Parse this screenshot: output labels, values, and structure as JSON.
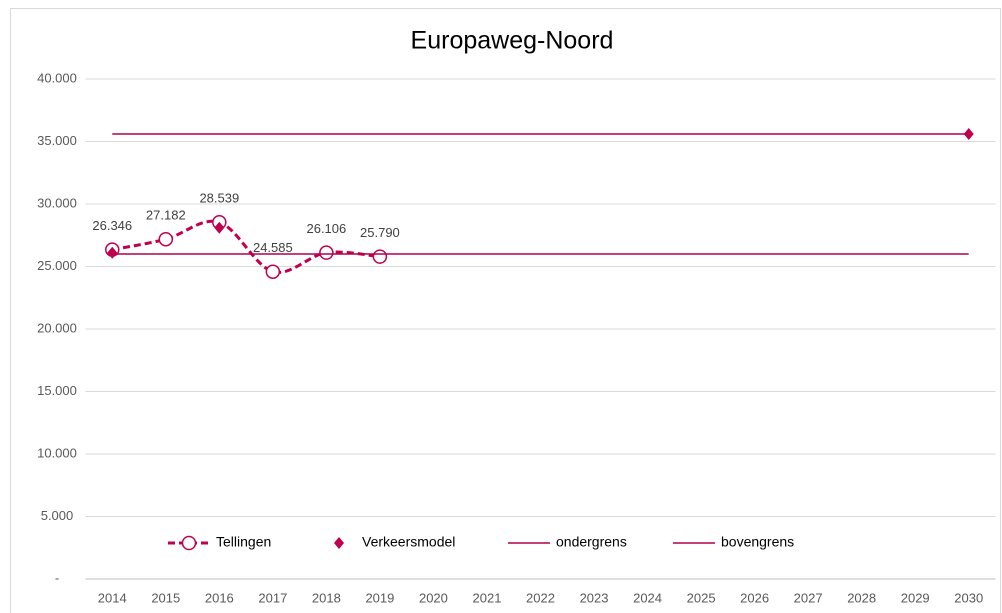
{
  "chart_data": {
    "type": "line",
    "title": "Europaweg-Noord",
    "categories": [
      "2014",
      "2015",
      "2016",
      "2017",
      "2018",
      "2019",
      "2020",
      "2021",
      "2022",
      "2023",
      "2024",
      "2025",
      "2026",
      "2027",
      "2028",
      "2029",
      "2030"
    ],
    "ylim": [
      0,
      40000
    ],
    "yticks": [
      {
        "value": 0,
        "label": "-"
      },
      {
        "value": 5000,
        "label": "5.000"
      },
      {
        "value": 10000,
        "label": "10.000"
      },
      {
        "value": 15000,
        "label": "15.000"
      },
      {
        "value": 20000,
        "label": "20.000"
      },
      {
        "value": 25000,
        "label": "25.000"
      },
      {
        "value": 30000,
        "label": "30.000"
      },
      {
        "value": 35000,
        "label": "35.000"
      },
      {
        "value": 40000,
        "label": "40.000"
      }
    ],
    "grid": true,
    "legend": "bottom",
    "series": [
      {
        "name": "Tellingen",
        "color": "#c0004e",
        "dashed": true,
        "smooth": true,
        "marker": "circle",
        "values": [
          26346,
          27182,
          28539,
          24585,
          26106,
          25790,
          null,
          null,
          null,
          null,
          null,
          null,
          null,
          null,
          null,
          null,
          null
        ],
        "value_labels": [
          "26.346",
          "27.182",
          "28.539",
          "24.585",
          "26.106",
          "25.790",
          null,
          null,
          null,
          null,
          null,
          null,
          null,
          null,
          null,
          null,
          null
        ]
      },
      {
        "name": "Verkeersmodel",
        "color": "#c0004e",
        "marker": "diamond",
        "line": false,
        "values": [
          26100,
          null,
          28100,
          null,
          null,
          null,
          null,
          null,
          null,
          null,
          null,
          null,
          null,
          null,
          null,
          null,
          35600
        ]
      },
      {
        "name": "ondergrens",
        "color": "#b0004a",
        "values": [
          26000,
          26000,
          26000,
          26000,
          26000,
          26000,
          26000,
          26000,
          26000,
          26000,
          26000,
          26000,
          26000,
          26000,
          26000,
          26000,
          26000
        ]
      },
      {
        "name": "bovengrens",
        "color": "#b0004a",
        "values": [
          35600,
          35600,
          35600,
          35600,
          35600,
          35600,
          35600,
          35600,
          35600,
          35600,
          35600,
          35600,
          35600,
          35600,
          35600,
          35600,
          35600
        ]
      }
    ]
  }
}
